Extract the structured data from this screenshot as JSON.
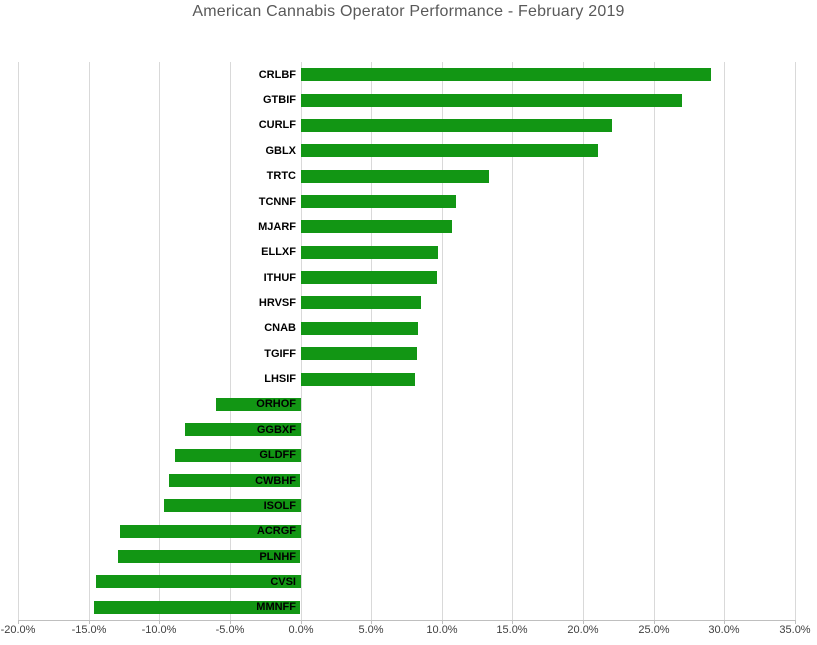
{
  "chart": {
    "title": "American Cannabis Operator Performance - February 2019"
  },
  "colors": {
    "bar": "#129614",
    "gridline": "#d9d9d9",
    "axis_line": "#bfbfbf",
    "title_text": "#595959",
    "tick_text": "#404040",
    "category_text": "#000000",
    "background": "#ffffff"
  },
  "chart_data": {
    "type": "bar",
    "orientation": "horizontal",
    "title": "American Cannabis Operator Performance - February 2019",
    "xlabel": "",
    "ylabel": "",
    "unit": "%",
    "xlim": [
      -20,
      35
    ],
    "x_ticks": [
      -20,
      -15,
      -10,
      -5,
      0,
      5,
      10,
      15,
      20,
      25,
      30,
      35
    ],
    "x_tick_labels": [
      "-20.0%",
      "-15.0%",
      "-10.0%",
      "-5.0%",
      "0.0%",
      "5.0%",
      "10.0%",
      "15.0%",
      "20.0%",
      "25.0%",
      "30.0%",
      "35.0%"
    ],
    "grid": true,
    "legend": false,
    "categories": [
      "CRLBF",
      "GTBIF",
      "CURLF",
      "GBLX",
      "TRTC",
      "TCNNF",
      "MJARF",
      "ELLXF",
      "ITHUF",
      "HRVSF",
      "CNAB",
      "TGIFF",
      "LHSIF",
      "ORHOF",
      "GGBXF",
      "GLDFF",
      "CWBHF",
      "ISOLF",
      "ACRGF",
      "PLNHF",
      "CVSI",
      "MMNFF"
    ],
    "values": [
      29.0,
      27.0,
      22.0,
      21.0,
      13.3,
      11.0,
      10.7,
      9.7,
      9.6,
      8.5,
      8.3,
      8.2,
      8.1,
      -6.0,
      -8.2,
      -8.9,
      -9.3,
      -9.7,
      -12.8,
      -12.9,
      -14.5,
      -14.6
    ]
  }
}
